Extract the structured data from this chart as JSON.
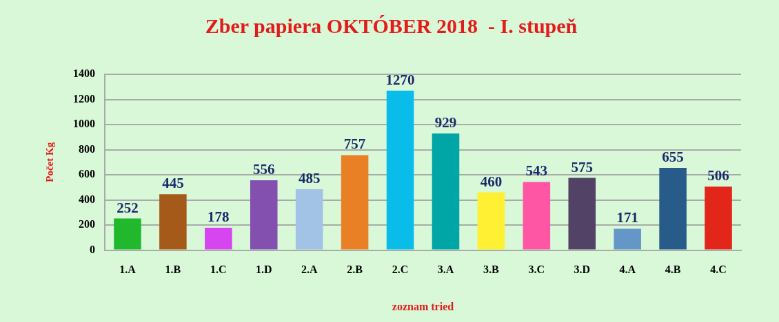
{
  "chart_data": {
    "type": "bar",
    "title": "Zber papiera OKTÓBER 2018  - I. stupeň",
    "xlabel": "zoznam tried",
    "ylabel": "Počet Kg",
    "categories": [
      "1.A",
      "1.B",
      "1.C",
      "1.D",
      "2.A",
      "2.B",
      "2.C",
      "3.A",
      "3.B",
      "3.C",
      "3.D",
      "4.A",
      "4.B",
      "4.C"
    ],
    "values": [
      252,
      445,
      178,
      556,
      485,
      757,
      1270,
      929,
      460,
      543,
      575,
      171,
      655,
      506
    ],
    "colors": [
      "#22b82e",
      "#a65a1a",
      "#d645f0",
      "#8350b0",
      "#a3c3e6",
      "#ea8025",
      "#0abcea",
      "#00a5a5",
      "#fff033",
      "#ff55a5",
      "#524366",
      "#6496c8",
      "#285a8a",
      "#e2261a"
    ],
    "ylim": [
      0,
      1400
    ],
    "yticks": [
      0,
      200,
      400,
      600,
      800,
      1000,
      1200,
      1400
    ],
    "grid": "y",
    "data_labels": true
  }
}
